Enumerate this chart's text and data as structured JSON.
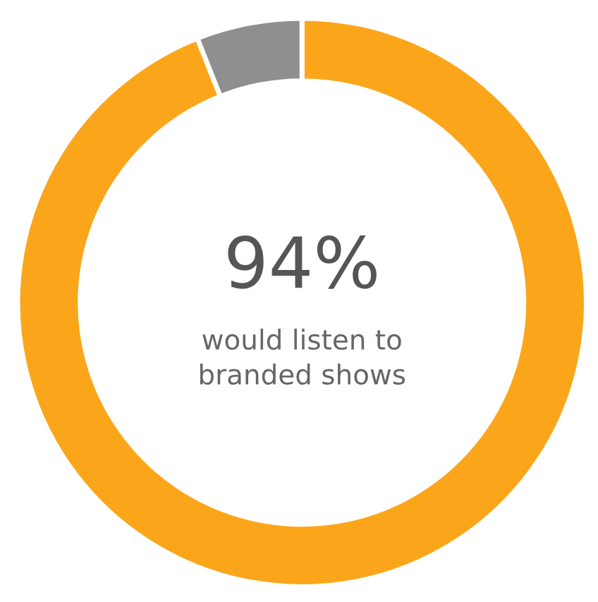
{
  "chart_data": {
    "type": "donut",
    "categories": [
      null,
      null
    ],
    "values": [
      94,
      6
    ],
    "colors": [
      "#fba61a",
      "#8f8f8f"
    ],
    "value_labels": [
      "94%",
      null
    ],
    "annotations": [
      "would listen to\nbranded shows"
    ]
  }
}
